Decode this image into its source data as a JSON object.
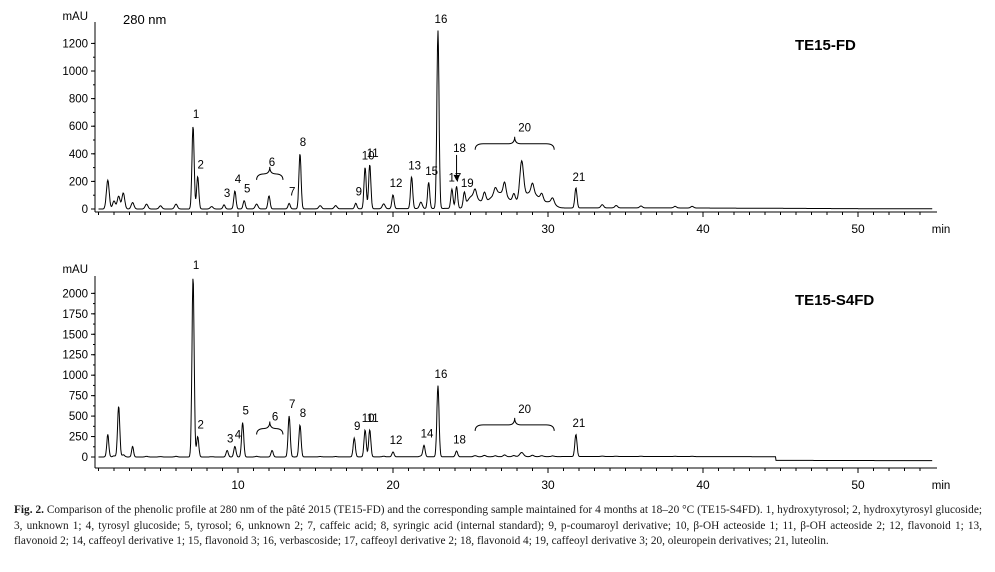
{
  "chart_data": [
    {
      "type": "line",
      "title": "TE15-FD",
      "subtitle": "280 nm",
      "ylabel": "mAU",
      "xlabel": "min",
      "xlim": [
        0.5,
        55
      ],
      "ylim": [
        -60,
        1340
      ],
      "x_ticks": [
        10,
        20,
        30,
        40,
        50
      ],
      "y_ticks": [
        0,
        200,
        400,
        600,
        800,
        1000,
        1200
      ],
      "peaks": [
        {
          "label": "1",
          "x": 7.1,
          "y": 600
        },
        {
          "label": "2",
          "x": 7.4,
          "y": 235
        },
        {
          "label": "3",
          "x": 9.1,
          "y": 30
        },
        {
          "label": "4",
          "x": 9.8,
          "y": 130
        },
        {
          "label": "5",
          "x": 10.4,
          "y": 60
        },
        {
          "label": "6",
          "x": 12.0,
          "y": 95
        },
        {
          "label": "7",
          "x": 13.3,
          "y": 40
        },
        {
          "label": "8",
          "x": 14.0,
          "y": 400
        },
        {
          "label": "9",
          "x": 17.6,
          "y": 40
        },
        {
          "label": "10",
          "x": 18.2,
          "y": 300
        },
        {
          "label": "11",
          "x": 18.5,
          "y": 320
        },
        {
          "label": "12",
          "x": 20.0,
          "y": 100
        },
        {
          "label": "13",
          "x": 21.2,
          "y": 230
        },
        {
          "label": "15",
          "x": 22.3,
          "y": 190
        },
        {
          "label": "16",
          "x": 22.9,
          "y": 1290
        },
        {
          "label": "17",
          "x": 23.8,
          "y": 140
        },
        {
          "label": "18",
          "x": 24.1,
          "y": 160
        },
        {
          "label": "19",
          "x": 24.6,
          "y": 100
        },
        {
          "label": "20",
          "x": 28.3,
          "y": 270
        },
        {
          "label": "21",
          "x": 31.8,
          "y": 145
        }
      ]
    },
    {
      "type": "line",
      "title": "TE15-S4FD",
      "ylabel": "mAU",
      "xlabel": "min",
      "xlim": [
        0.5,
        55
      ],
      "ylim": [
        -120,
        2250
      ],
      "x_ticks": [
        10,
        20,
        30,
        40,
        50
      ],
      "y_ticks": [
        0,
        250,
        500,
        750,
        1000,
        1250,
        1500,
        1750,
        2000
      ],
      "peaks": [
        {
          "label": "1",
          "x": 7.1,
          "y": 2200
        },
        {
          "label": "2",
          "x": 7.4,
          "y": 250
        },
        {
          "label": "3",
          "x": 9.3,
          "y": 80
        },
        {
          "label": "4",
          "x": 9.8,
          "y": 130
        },
        {
          "label": "5",
          "x": 10.3,
          "y": 420
        },
        {
          "label": "6",
          "x": 12.2,
          "y": 80
        },
        {
          "label": "7",
          "x": 13.3,
          "y": 500
        },
        {
          "label": "8",
          "x": 14.0,
          "y": 390
        },
        {
          "label": "9",
          "x": 17.5,
          "y": 230
        },
        {
          "label": "10",
          "x": 18.2,
          "y": 330
        },
        {
          "label": "11",
          "x": 18.5,
          "y": 330
        },
        {
          "label": "12",
          "x": 20.0,
          "y": 60
        },
        {
          "label": "14",
          "x": 22.0,
          "y": 140
        },
        {
          "label": "16",
          "x": 22.9,
          "y": 870
        },
        {
          "label": "18",
          "x": 24.1,
          "y": 70
        },
        {
          "label": "20",
          "x": 28.3,
          "y": 50
        },
        {
          "label": "21",
          "x": 31.8,
          "y": 270
        }
      ]
    }
  ],
  "caption": {
    "label": "Fig. 2.",
    "text": " Comparison of the phenolic profile at 280 nm of the pâté 2015 (TE15-FD) and the corresponding sample maintained for 4 months at 18–20 °C (TE15-S4FD). 1, hydroxytyrosol; 2, hydroxytyrosyl glucoside; 3, unknown 1; 4, tyrosyl glucoside; 5, tyrosol; 6, unknown 2; 7, caffeic acid; 8, syringic acid (internal standard); 9, p-coumaroyl derivative; 10, β-OH acteoside 1; 11, β-OH acteoside 2; 12, flavonoid 1; 13, flavonoid 2; 14, caffeoyl derivative 1; 15, flavonoid 3; 16, verbascoside; 17, caffeoyl derivative 2; 18, flavonoid 4; 19, caffeoyl derivative 3; 20, oleuropein derivatives; 21, luteolin."
  },
  "colors": {
    "trace": "#000000",
    "axis": "#000000"
  }
}
